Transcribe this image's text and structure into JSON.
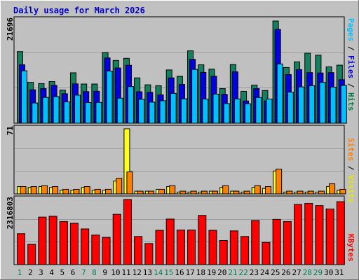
{
  "chart_data": {
    "type": "bar",
    "title": "Daily usage for March 2026",
    "days": [
      "1",
      "2",
      "3",
      "4",
      "5",
      "6",
      "7",
      "8",
      "9",
      "10",
      "11",
      "12",
      "13",
      "14",
      "15",
      "16",
      "17",
      "18",
      "19",
      "20",
      "21",
      "22",
      "23",
      "24",
      "25",
      "26",
      "27",
      "28",
      "29",
      "30",
      "31"
    ],
    "weekend_days": [
      "1",
      "7",
      "8",
      "14",
      "15",
      "21",
      "22",
      "28",
      "29"
    ],
    "panels": [
      {
        "id": "traffic",
        "ymax_label": "21696",
        "ymax": 21696,
        "legend_parts": [
          "Pages",
          "Files",
          "Hits"
        ],
        "legend_colors": [
          "#00c0ff",
          "#0000e0",
          "#008040"
        ],
        "series": [
          {
            "name": "Hits",
            "color": "#158060",
            "values": [
              15190,
              8670,
              8410,
              8840,
              7020,
              10700,
              8320,
              8320,
              15020,
              13320,
              13770,
              9620,
              8150,
              7960,
              11310,
              9950,
              15370,
              12400,
              11480,
              7340,
              12450,
              6770,
              8100,
              6940,
              21696,
              11830,
              13030,
              14860,
              14440,
              11960,
              12320
            ]
          },
          {
            "name": "Files",
            "color": "#0000e0",
            "values": [
              12400,
              7090,
              7340,
              8030,
              6250,
              8340,
              6710,
              6790,
              13850,
              11720,
              12300,
              6670,
              6560,
              6020,
              9620,
              8240,
              13560,
              10790,
              9960,
              6120,
              10910,
              4720,
              7340,
              4720,
              19910,
              10330,
              11380,
              10740,
              10660,
              10740,
              9230
            ]
          },
          {
            "name": "Pages",
            "color": "#00c0ff",
            "values": [
              11130,
              4290,
              5470,
              5640,
              4530,
              5950,
              4390,
              4410,
              11070,
              5300,
              7780,
              5080,
              4470,
              4770,
              6330,
              5180,
              11410,
              5130,
              6170,
              4180,
              5160,
              4130,
              5470,
              5140,
              12580,
              6600,
              7700,
              7970,
              8660,
              7660,
              8020
            ]
          }
        ]
      },
      {
        "id": "visits",
        "ymax_label": "71",
        "ymax": 71,
        "legend_parts": [
          "Sites",
          "Visits"
        ],
        "legend_colors": [
          "#ff8000",
          "#e8e800"
        ],
        "series": [
          {
            "name": "Visits",
            "color": "#ffff20",
            "values": [
              8,
              7,
              8,
              7,
              4,
              4,
              7,
              4,
              4,
              14,
              71,
              3,
              3,
              5,
              8,
              2,
              2,
              2,
              3,
              7,
              3,
              2,
              7,
              6,
              25,
              2,
              2,
              2,
              2,
              8,
              4
            ]
          },
          {
            "name": "Sites",
            "color": "#ff8000",
            "values": [
              8,
              8,
              9,
              8,
              5,
              5,
              8,
              5,
              5,
              17,
              24,
              3,
              3,
              5,
              9,
              3,
              3,
              3,
              3,
              9,
              3,
              3,
              9,
              8,
              27,
              3,
              3,
              3,
              3,
              11,
              5
            ]
          }
        ]
      },
      {
        "id": "kbytes",
        "ymax_label": "2316803",
        "ymax": 2316803,
        "legend_parts": [
          "KBytes"
        ],
        "legend_colors": [
          "#ff0000"
        ],
        "series": [
          {
            "name": "KBytes",
            "color": "#ff0000",
            "values": [
              1100000,
              720000,
              1690000,
              1720000,
              1530000,
              1470000,
              1270000,
              1050000,
              970000,
              1790000,
              2316803,
              1000000,
              750000,
              1220000,
              1620000,
              1230000,
              1230000,
              1750000,
              1220000,
              860000,
              1200000,
              1000000,
              1570000,
              790000,
              1610000,
              1530000,
              2140000,
              2180000,
              2100000,
              1980000,
              2240000
            ]
          }
        ]
      }
    ]
  }
}
